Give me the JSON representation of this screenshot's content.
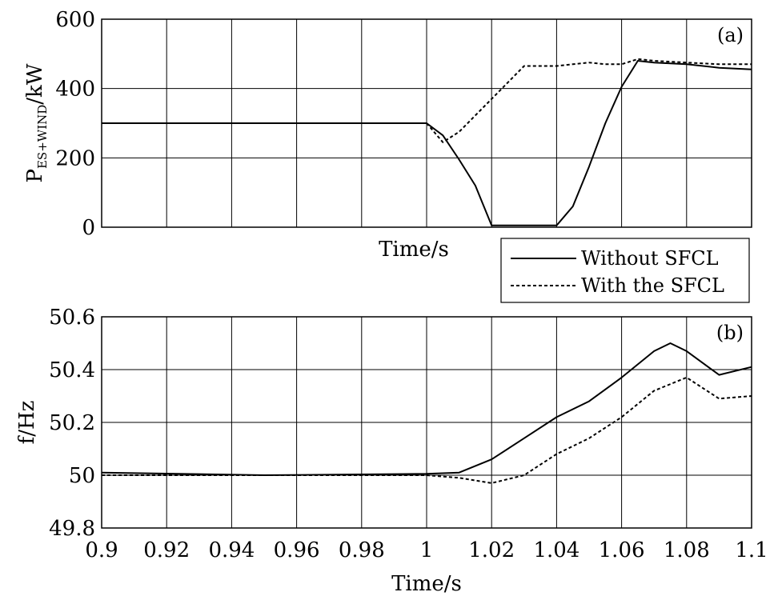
{
  "chart_data": [
    {
      "type": "line",
      "panel_label": "(a)",
      "ylabel_main": "P",
      "ylabel_sub": "ES+WIND",
      "ylabel_unit": "/kW",
      "xlabel": "Time/s",
      "xlim": [
        0.9,
        1.1
      ],
      "ylim": [
        0,
        600
      ],
      "yticks": [
        "600",
        "400",
        "200",
        "0"
      ],
      "grid": true,
      "legend": "bottom-right",
      "series": [
        {
          "name": "Without SFCL",
          "style": "solid",
          "x": [
            0.9,
            1.0,
            1.005,
            1.01,
            1.015,
            1.02,
            1.04,
            1.045,
            1.05,
            1.055,
            1.06,
            1.065,
            1.07,
            1.08,
            1.09,
            1.1
          ],
          "y": [
            300,
            300,
            265,
            195,
            120,
            5,
            5,
            60,
            175,
            300,
            405,
            480,
            475,
            470,
            460,
            455
          ]
        },
        {
          "name": "With the SFCL",
          "style": "dashed",
          "x": [
            0.9,
            1.0,
            1.005,
            1.01,
            1.02,
            1.03,
            1.04,
            1.045,
            1.05,
            1.055,
            1.06,
            1.065,
            1.07,
            1.08,
            1.09,
            1.1
          ],
          "y": [
            300,
            300,
            245,
            275,
            370,
            465,
            465,
            470,
            475,
            470,
            470,
            485,
            480,
            475,
            470,
            470
          ]
        }
      ]
    },
    {
      "type": "line",
      "panel_label": "(b)",
      "ylabel": "f/Hz",
      "xlabel": "Time/s",
      "xlim": [
        0.9,
        1.1
      ],
      "ylim": [
        49.8,
        50.6
      ],
      "yticks": [
        "50.6",
        "50.4",
        "50.2",
        "50",
        "49.8"
      ],
      "xticks": [
        "0.9",
        "0.92",
        "0.94",
        "0.96",
        "0.98",
        "1",
        "1.02",
        "1.04",
        "1.06",
        "1.08",
        "1.1"
      ],
      "grid": true,
      "series": [
        {
          "name": "Without SFCL",
          "style": "solid",
          "x": [
            0.9,
            0.95,
            1.0,
            1.01,
            1.02,
            1.03,
            1.04,
            1.05,
            1.06,
            1.07,
            1.075,
            1.08,
            1.09,
            1.1
          ],
          "y": [
            50.01,
            50.0,
            50.005,
            50.01,
            50.06,
            50.14,
            50.22,
            50.28,
            50.37,
            50.47,
            50.5,
            50.47,
            50.38,
            50.41
          ]
        },
        {
          "name": "With the SFCL",
          "style": "dashed",
          "x": [
            0.9,
            0.95,
            1.0,
            1.01,
            1.02,
            1.03,
            1.04,
            1.05,
            1.06,
            1.07,
            1.08,
            1.09,
            1.1
          ],
          "y": [
            50.0,
            50.0,
            50.0,
            49.99,
            49.97,
            50.0,
            50.08,
            50.14,
            50.22,
            50.32,
            50.37,
            50.29,
            50.3
          ]
        }
      ]
    }
  ],
  "legend_entries": [
    "Without SFCL",
    "With the SFCL"
  ]
}
